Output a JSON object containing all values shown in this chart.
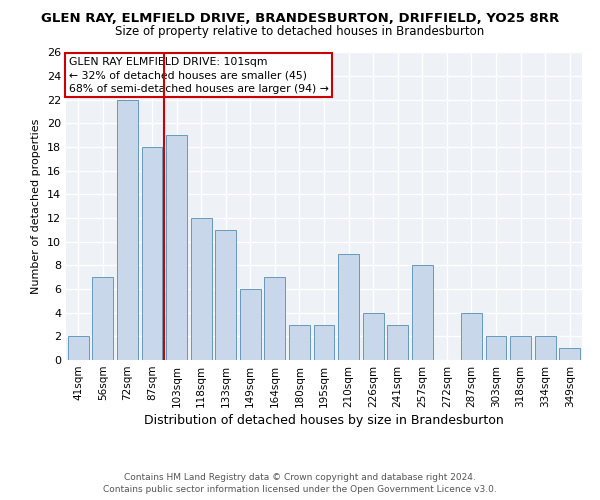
{
  "title": "GLEN RAY, ELMFIELD DRIVE, BRANDESBURTON, DRIFFIELD, YO25 8RR",
  "subtitle": "Size of property relative to detached houses in Brandesburton",
  "xlabel": "Distribution of detached houses by size in Brandesburton",
  "ylabel": "Number of detached properties",
  "categories": [
    "41sqm",
    "56sqm",
    "72sqm",
    "87sqm",
    "103sqm",
    "118sqm",
    "133sqm",
    "149sqm",
    "164sqm",
    "180sqm",
    "195sqm",
    "210sqm",
    "226sqm",
    "241sqm",
    "257sqm",
    "272sqm",
    "287sqm",
    "303sqm",
    "318sqm",
    "334sqm",
    "349sqm"
  ],
  "values": [
    2,
    7,
    22,
    18,
    19,
    12,
    11,
    6,
    7,
    3,
    3,
    9,
    4,
    3,
    8,
    0,
    4,
    2,
    2,
    2,
    1
  ],
  "bar_color": "#c8d8ea",
  "bar_edge_color": "#6699bb",
  "vline_index": 3.5,
  "vline_color": "#cc0000",
  "annotation_title": "GLEN RAY ELMFIELD DRIVE: 101sqm",
  "annotation_line2": "← 32% of detached houses are smaller (45)",
  "annotation_line3": "68% of semi-detached houses are larger (94) →",
  "annotation_box_color": "#cc0000",
  "ylim": [
    0,
    26
  ],
  "yticks": [
    0,
    2,
    4,
    6,
    8,
    10,
    12,
    14,
    16,
    18,
    20,
    22,
    24,
    26
  ],
  "footer1": "Contains HM Land Registry data © Crown copyright and database right 2024.",
  "footer2": "Contains public sector information licensed under the Open Government Licence v3.0.",
  "bg_color": "#eef2f7"
}
